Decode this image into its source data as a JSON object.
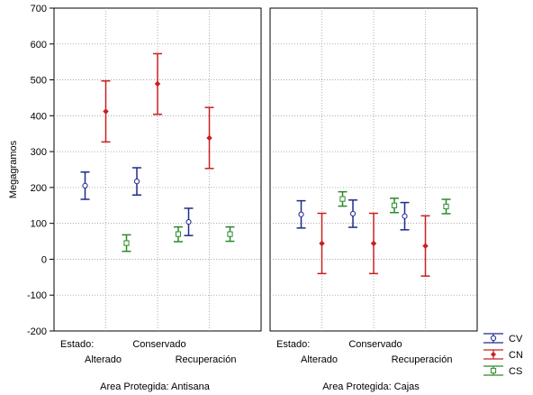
{
  "chart_data": {
    "type": "errorbar",
    "ylabel": "Megagramos",
    "ylim": [
      -200,
      700
    ],
    "yticks": [
      -200,
      -100,
      0,
      100,
      200,
      300,
      400,
      500,
      600,
      700
    ],
    "grid": true,
    "legend_placement": "bottom-right",
    "factor_label": "Estado:",
    "categories": [
      "Alterado",
      "Conservado",
      "Recuperación"
    ],
    "series": [
      {
        "name": "CV",
        "color": "#1f2a8c",
        "marker": "open-circle"
      },
      {
        "name": "CN",
        "color": "#c8201e",
        "marker": "filled-diamond"
      },
      {
        "name": "CS",
        "color": "#2a8a2a",
        "marker": "open-square"
      }
    ],
    "panels": [
      {
        "title": "Area Protegida: Antisana",
        "CV": [
          {
            "mean": 205,
            "low": 167,
            "high": 243
          },
          {
            "mean": 217,
            "low": 179,
            "high": 255
          },
          {
            "mean": 104,
            "low": 66,
            "high": 142
          }
        ],
        "CN": [
          {
            "mean": 412,
            "low": 327,
            "high": 497
          },
          {
            "mean": 489,
            "low": 404,
            "high": 573
          },
          {
            "mean": 338,
            "low": 253,
            "high": 423
          }
        ],
        "CS": [
          {
            "mean": 45,
            "low": 22,
            "high": 68
          },
          {
            "mean": 70,
            "low": 49,
            "high": 90
          },
          {
            "mean": 70,
            "low": 50,
            "high": 90
          }
        ]
      },
      {
        "title": "Area Protegida: Cajas",
        "CV": [
          {
            "mean": 125,
            "low": 87,
            "high": 163
          },
          {
            "mean": 127,
            "low": 89,
            "high": 165
          },
          {
            "mean": 120,
            "low": 82,
            "high": 158
          }
        ],
        "CN": [
          {
            "mean": 44,
            "low": -40,
            "high": 128
          },
          {
            "mean": 44,
            "low": -40,
            "high": 128
          },
          {
            "mean": 37,
            "low": -47,
            "high": 121
          }
        ],
        "CS": [
          {
            "mean": 168,
            "low": 148,
            "high": 188
          },
          {
            "mean": 150,
            "low": 130,
            "high": 170
          },
          {
            "mean": 147,
            "low": 127,
            "high": 167
          }
        ]
      }
    ]
  }
}
